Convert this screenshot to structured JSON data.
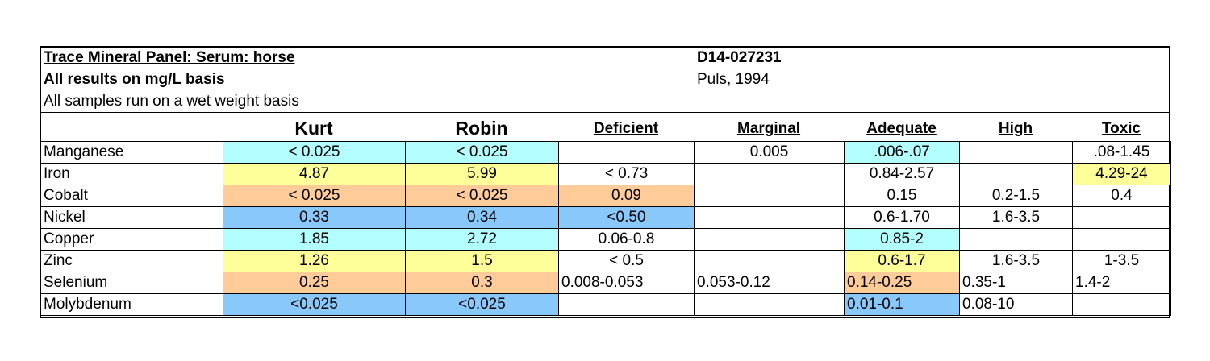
{
  "header": {
    "title": "Trace Mineral Panel:  Serum: horse",
    "subtitle": "All results on mg/L basis",
    "note": "All samples run on a wet weight basis",
    "case_id": "D14-027231",
    "reference": "Puls, 1994"
  },
  "columns": [
    "Kurt",
    "Robin",
    "Deficient",
    "Marginal",
    "Adequate",
    "High",
    "Toxic"
  ],
  "colors": {
    "cyan": "#b3ffff",
    "yellow": "#ffff99",
    "orange": "#ffcc99",
    "blue": "#89c8fb"
  },
  "rows": [
    {
      "name": "Manganese",
      "kurt": "< 0.025",
      "robin": "< 0.025",
      "deficient": "",
      "marginal": "0.005",
      "adequate": ".006-.07",
      "high": "",
      "toxic": ".08-1.45"
    },
    {
      "name": "Iron",
      "kurt": "4.87",
      "robin": "5.99",
      "deficient": "< 0.73",
      "marginal": "",
      "adequate": "0.84-2.57",
      "high": "",
      "toxic": "4.29-24"
    },
    {
      "name": "Cobalt",
      "kurt": "< 0.025",
      "robin": "< 0.025",
      "deficient": "0.09",
      "marginal": "",
      "adequate": "0.15",
      "high": "0.2-1.5",
      "toxic": "0.4"
    },
    {
      "name": "Nickel",
      "kurt": "0.33",
      "robin": "0.34",
      "deficient": "<0.50",
      "marginal": "",
      "adequate": "0.6-1.70",
      "high": "1.6-3.5",
      "toxic": ""
    },
    {
      "name": "Copper",
      "kurt": "1.85",
      "robin": "2.72",
      "deficient": "0.06-0.8",
      "marginal": "",
      "adequate": "0.85-2",
      "high": "",
      "toxic": ""
    },
    {
      "name": "Zinc",
      "kurt": "1.26",
      "robin": "1.5",
      "deficient": "< 0.5",
      "marginal": "",
      "adequate": "0.6-1.7",
      "high": "1.6-3.5",
      "toxic": "1-3.5"
    },
    {
      "name": "Selenium",
      "kurt": "0.25",
      "robin": "0.3",
      "deficient": "0.008-0.053",
      "marginal": "0.053-0.12",
      "adequate": "0.14-0.25",
      "high": "0.35-1",
      "toxic": "1.4-2"
    },
    {
      "name": "Molybdenum",
      "kurt": "<0.025",
      "robin": "<0.025",
      "deficient": "",
      "marginal": "",
      "adequate": "0.01-0.1",
      "high": "0.08-10",
      "toxic": ""
    }
  ]
}
